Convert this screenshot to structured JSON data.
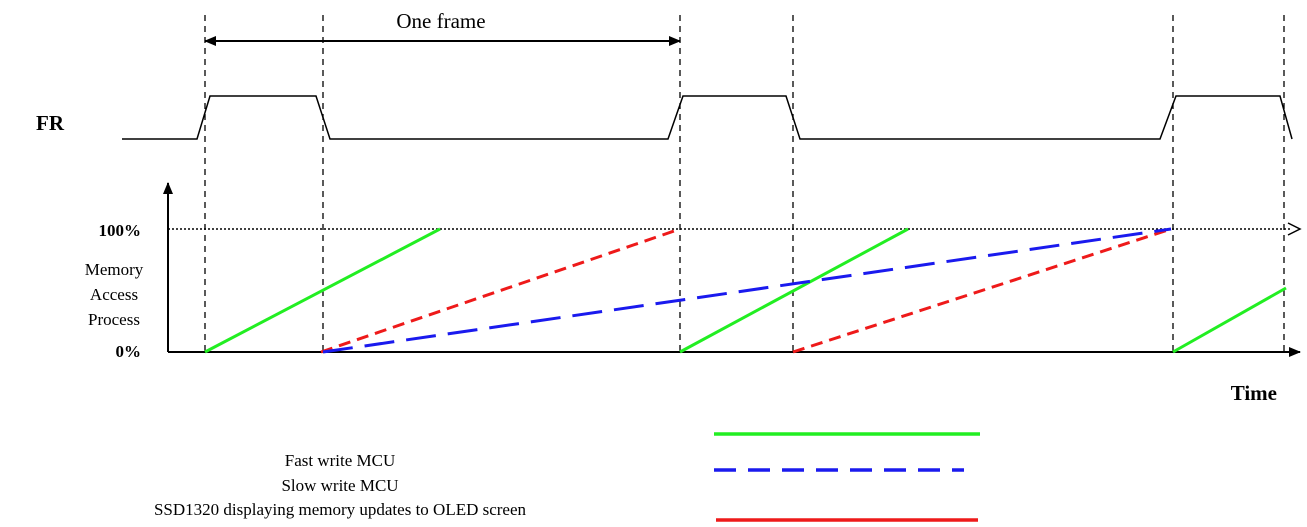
{
  "title": "One frame",
  "signal_label": "FR",
  "axis": {
    "y_max_label": "100%",
    "y_min_label": "0%",
    "y_title_lines": [
      "Memory",
      "Access",
      "Process"
    ],
    "x_title": "Time"
  },
  "legend": {
    "labels": [
      "Fast write MCU",
      "Slow write MCU",
      "SSD1320 displaying memory updates to OLED screen"
    ],
    "colors": [
      "#22ee22",
      "#1a1aee",
      "#ee1a1a"
    ],
    "styles": [
      "solid",
      "long-dash",
      "short-dash"
    ]
  },
  "colors": {
    "fast_write": "#22ee22",
    "slow_write": "#1a1aee",
    "display": "#ee1a1a",
    "ink": "#000000"
  }
}
